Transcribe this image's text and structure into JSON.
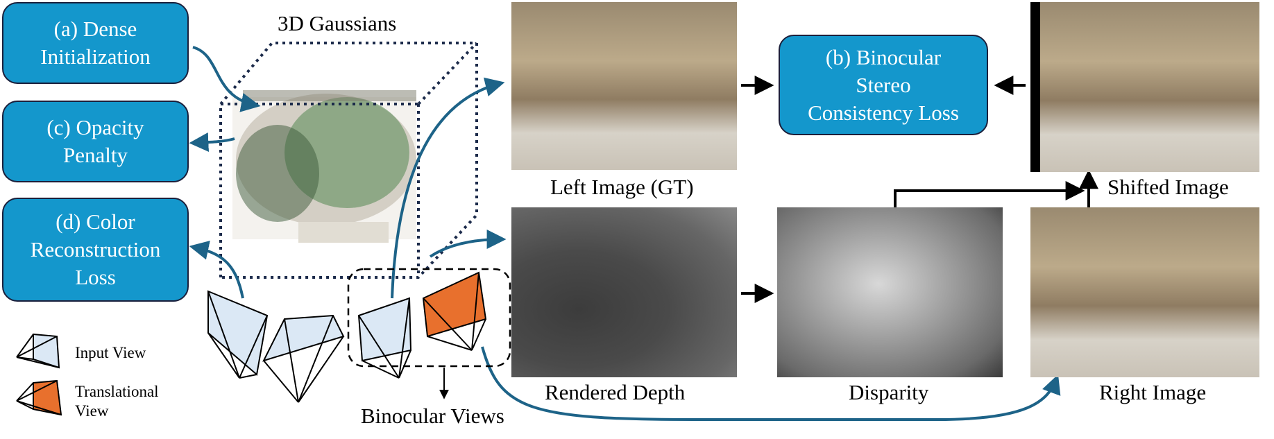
{
  "colors": {
    "box_fill": "#1497cc",
    "box_border": "#1b1f3b",
    "arrow": "#1d6388",
    "frustum_fill": "#dbe8f5",
    "translational_fill": "#e8702d",
    "legend_bg": "#e6e6e6"
  },
  "boxes": {
    "dense_init": [
      "(a) Dense",
      "Initialization"
    ],
    "opacity_penalty": [
      "(c) Opacity",
      "Penalty"
    ],
    "color_loss": [
      "(d) Color",
      "Reconstruction",
      "Loss"
    ],
    "stereo_loss": [
      "(b) Binocular",
      "Stereo",
      "Consistency Loss"
    ]
  },
  "captions": {
    "gaussians": "3D Gaussians",
    "left_image": "Left Image (GT)",
    "rendered_depth": "Rendered Depth",
    "disparity": "Disparity",
    "shifted_image": "Shifted Image",
    "right_image": "Right Image",
    "binocular_views": "Binocular Views"
  },
  "legend": {
    "input_view": "Input View",
    "translational_view": [
      "Translational",
      "View"
    ]
  }
}
